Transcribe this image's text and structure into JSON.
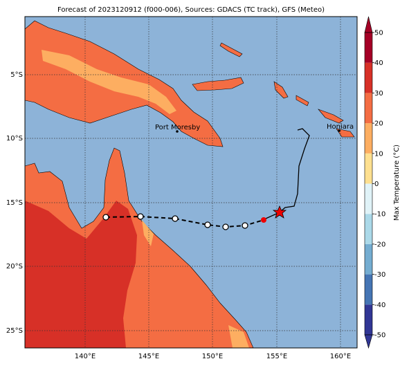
{
  "title": "Forecast of 2023120912 (f000-006), Sources: GDACS (TC track), GFS (Meteo)",
  "lat_labels": [
    "5°S",
    "10°S",
    "15°S",
    "20°S",
    "25°S"
  ],
  "lon_labels": [
    "140°E",
    "145°E",
    "150°E",
    "155°E",
    "160°E"
  ],
  "places": [
    {
      "label": "Port Moresby"
    },
    {
      "label": "Honiara"
    }
  ],
  "colorbar": {
    "label": "Max Temperature (°C)",
    "ticks": [
      -50,
      -40,
      -30,
      -20,
      -10,
      0,
      10,
      20,
      30,
      40,
      50
    ],
    "colors": [
      "#313695",
      "#4575b4",
      "#74add1",
      "#abd9e9",
      "#e0f3f8",
      "#fee090",
      "#fdae61",
      "#f46d43",
      "#d73027",
      "#a50026"
    ]
  }
}
